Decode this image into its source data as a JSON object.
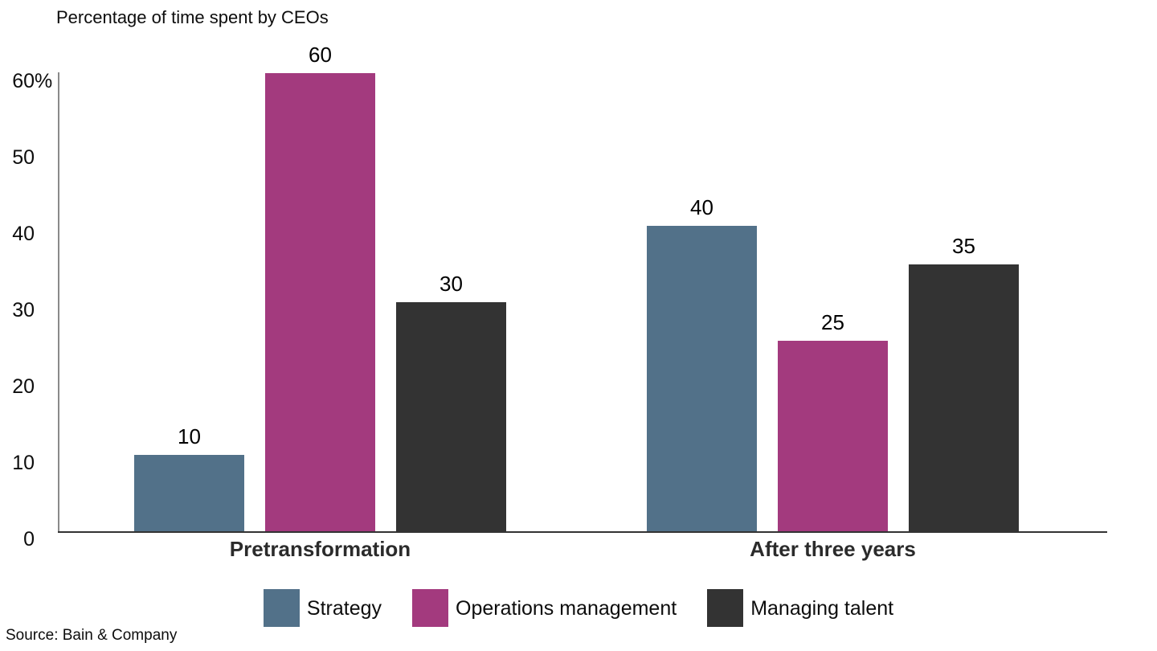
{
  "chart_data": {
    "type": "bar",
    "title": "Percentage of time spent by CEOs",
    "categories": [
      "Pretransformation",
      "After three years"
    ],
    "series": [
      {
        "name": "Strategy",
        "color": "#527189",
        "values": [
          10,
          40
        ]
      },
      {
        "name": "Operations management",
        "color": "#a33a7e",
        "values": [
          60,
          25
        ]
      },
      {
        "name": "Managing talent",
        "color": "#333333",
        "values": [
          30,
          35
        ]
      }
    ],
    "yticks": [
      {
        "value": 0,
        "label": "0",
        "suffix": ""
      },
      {
        "value": 10,
        "label": "10",
        "suffix": ""
      },
      {
        "value": 20,
        "label": "20",
        "suffix": ""
      },
      {
        "value": 30,
        "label": "30",
        "suffix": ""
      },
      {
        "value": 40,
        "label": "40",
        "suffix": ""
      },
      {
        "value": 50,
        "label": "50",
        "suffix": ""
      },
      {
        "value": 60,
        "label": "60",
        "suffix": "%"
      }
    ],
    "ylim": [
      0,
      60
    ],
    "grid": false,
    "legend_position": "bottom",
    "value_labels_shown": true
  },
  "source": "Source: Bain & Company"
}
